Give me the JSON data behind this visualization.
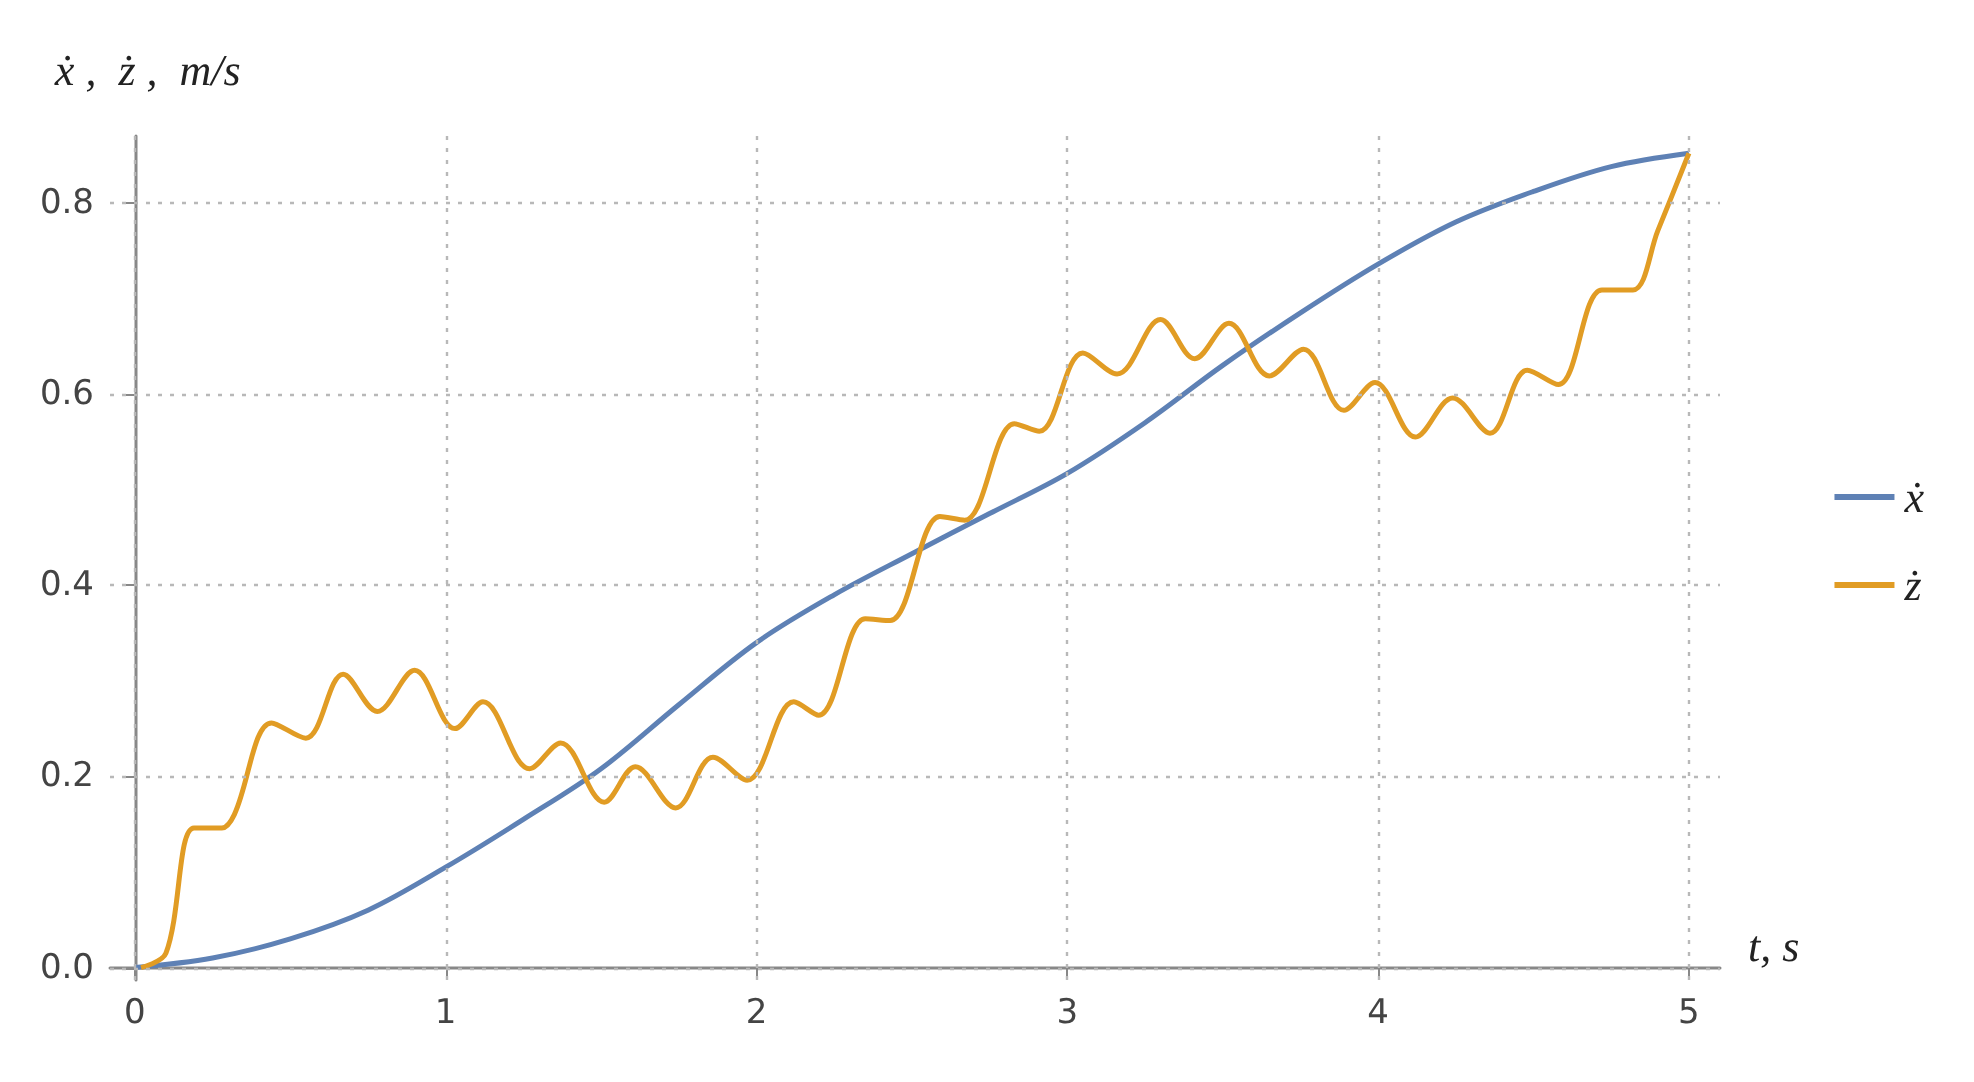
{
  "chart_data": {
    "type": "line",
    "xlabel": "t, s",
    "ylabel": "ẋ ,  ż ,  m/s",
    "xlim": [
      -0.08,
      5.1
    ],
    "xticks": [
      0,
      1,
      2,
      3,
      4,
      5
    ],
    "ylim": [
      -0.013,
      0.87
    ],
    "yticks": [
      {
        "value": 0,
        "label": "0.0"
      },
      {
        "value": 0.2,
        "label": "0.2"
      },
      {
        "value": 0.4,
        "label": "0.4"
      },
      {
        "value": 0.6,
        "label": "0.6"
      },
      {
        "value": 0.8,
        "label": "0.8"
      }
    ],
    "grid": true,
    "legend": "right",
    "marker": "none",
    "line_style": "solid",
    "series": [
      {
        "name": "ẋ",
        "color": "#5e81b5",
        "x": [
          0,
          0.25,
          0.5,
          0.75,
          1,
          1.25,
          1.5,
          1.75,
          2,
          2.25,
          2.5,
          2.75,
          3,
          3.25,
          3.5,
          3.75,
          4,
          4.25,
          4.5,
          4.75,
          5
        ],
        "values": [
          0,
          0.01,
          0.03,
          0.06,
          0.105,
          0.155,
          0.208,
          0.275,
          0.34,
          0.39,
          0.433,
          0.475,
          0.517,
          0.57,
          0.63,
          0.685,
          0.736,
          0.78,
          0.812,
          0.838,
          0.852
        ]
      },
      {
        "name": "ż",
        "color": "#e19c24",
        "x": [
          0.02,
          0.1,
          0.19,
          0.28,
          0.32,
          0.44,
          0.55,
          0.67,
          0.78,
          0.9,
          1.03,
          1.12,
          1.27,
          1.37,
          1.51,
          1.61,
          1.74,
          1.86,
          1.97,
          2.12,
          2.2,
          2.35,
          2.43,
          2.59,
          2.67,
          2.83,
          2.91,
          3.05,
          3.16,
          3.3,
          3.41,
          3.52,
          3.65,
          3.76,
          3.89,
          3.99,
          4.12,
          4.24,
          4.36,
          4.48,
          4.58,
          4.72,
          4.82,
          4.9,
          5
        ],
        "values": [
          0,
          0.015,
          0.146,
          0.146,
          0.16,
          0.256,
          0.24,
          0.307,
          0.268,
          0.311,
          0.25,
          0.278,
          0.208,
          0.235,
          0.173,
          0.21,
          0.167,
          0.22,
          0.196,
          0.278,
          0.264,
          0.365,
          0.363,
          0.472,
          0.468,
          0.569,
          0.561,
          0.643,
          0.621,
          0.678,
          0.637,
          0.674,
          0.619,
          0.647,
          0.583,
          0.612,
          0.555,
          0.596,
          0.559,
          0.625,
          0.61,
          0.709,
          0.709,
          0.771,
          0.852
        ]
      }
    ]
  }
}
